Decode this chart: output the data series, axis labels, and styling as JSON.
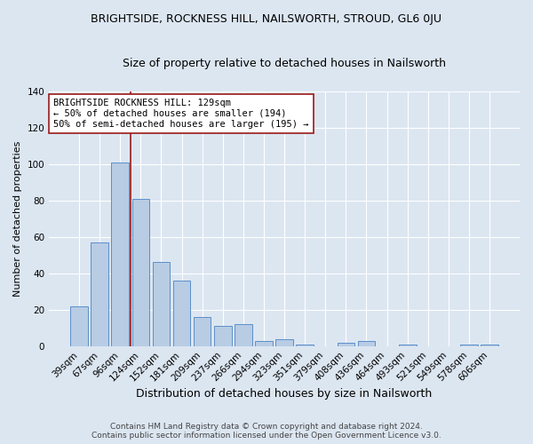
{
  "title": "BRIGHTSIDE, ROCKNESS HILL, NAILSWORTH, STROUD, GL6 0JU",
  "subtitle": "Size of property relative to detached houses in Nailsworth",
  "xlabel": "Distribution of detached houses by size in Nailsworth",
  "ylabel": "Number of detached properties",
  "categories": [
    "39sqm",
    "67sqm",
    "96sqm",
    "124sqm",
    "152sqm",
    "181sqm",
    "209sqm",
    "237sqm",
    "266sqm",
    "294sqm",
    "323sqm",
    "351sqm",
    "379sqm",
    "408sqm",
    "436sqm",
    "464sqm",
    "493sqm",
    "521sqm",
    "549sqm",
    "578sqm",
    "606sqm"
  ],
  "values": [
    22,
    57,
    101,
    81,
    46,
    36,
    16,
    11,
    12,
    3,
    4,
    1,
    0,
    2,
    3,
    0,
    1,
    0,
    0,
    1,
    1
  ],
  "bar_color": "#b8cce4",
  "bar_edge_color": "#5b8fc9",
  "background_color": "#dce6f1",
  "grid_color": "#ffffff",
  "vline_index": 3,
  "vline_color": "#9b1a1a",
  "annotation_text": "BRIGHTSIDE ROCKNESS HILL: 129sqm\n← 50% of detached houses are smaller (194)\n50% of semi-detached houses are larger (195) →",
  "annotation_box_color": "#ffffff",
  "annotation_edge_color": "#9b1a1a",
  "ylim": [
    0,
    140
  ],
  "yticks": [
    0,
    20,
    40,
    60,
    80,
    100,
    120,
    140
  ],
  "footnote": "Contains HM Land Registry data © Crown copyright and database right 2024.\nContains public sector information licensed under the Open Government Licence v3.0.",
  "title_fontsize": 9,
  "subtitle_fontsize": 9,
  "xlabel_fontsize": 9,
  "ylabel_fontsize": 8,
  "tick_fontsize": 7.5,
  "annotation_fontsize": 7.5,
  "footnote_fontsize": 6.5
}
